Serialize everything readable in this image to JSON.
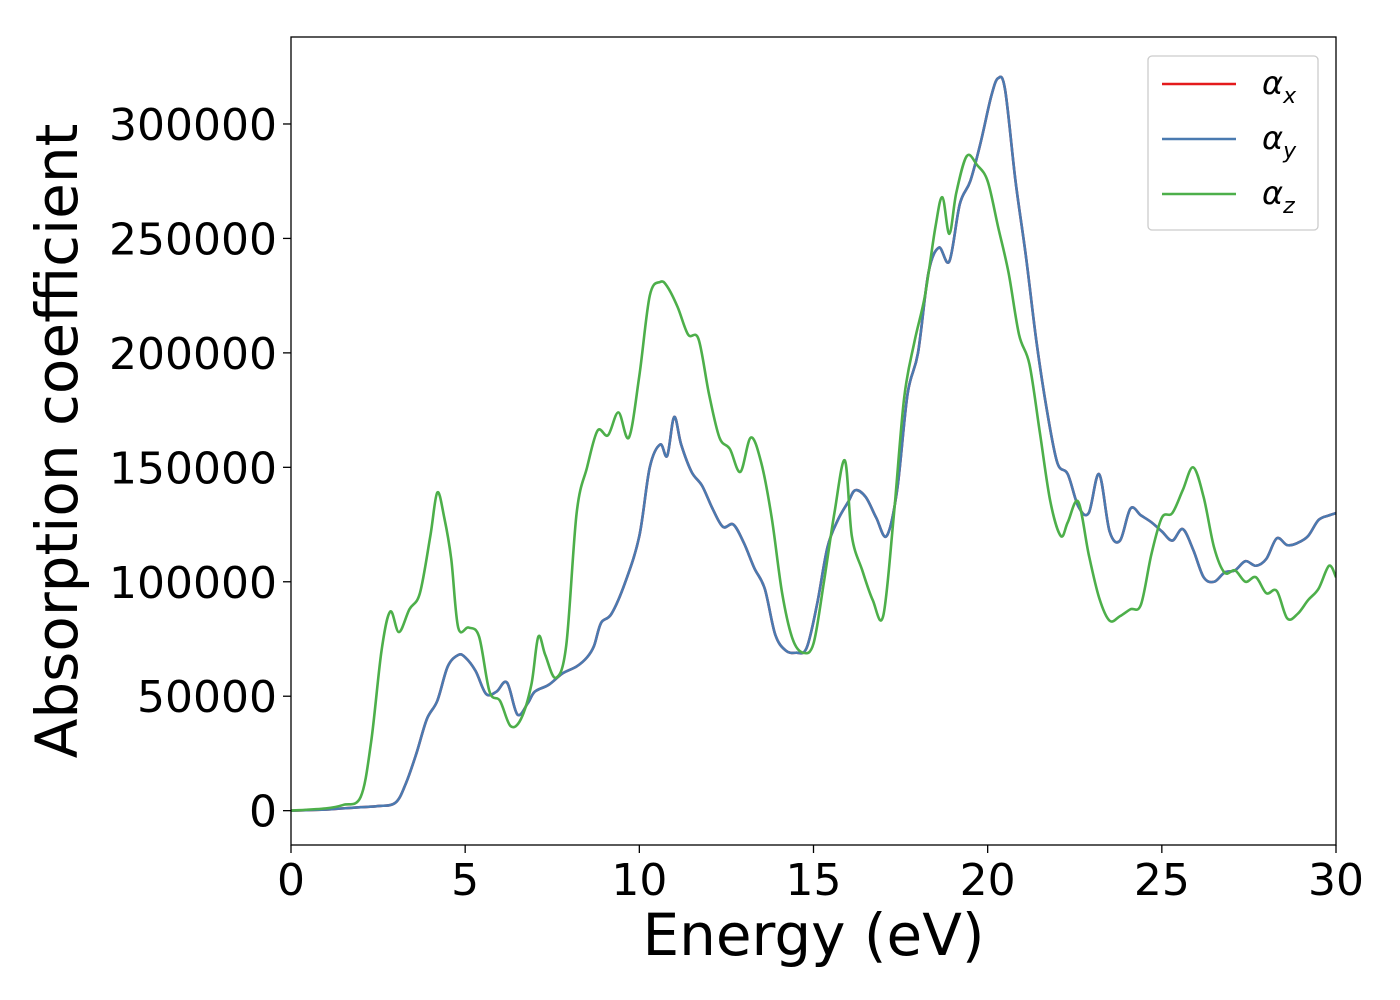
{
  "chart_data": {
    "type": "line",
    "xlabel": "Energy (eV)",
    "ylabel": "Absorption coefficient",
    "xlim": [
      0,
      30
    ],
    "ylim": [
      -15000,
      338000
    ],
    "xticks": [
      0,
      5,
      10,
      15,
      20,
      25,
      30
    ],
    "xtick_labels": [
      "0",
      "5",
      "10",
      "15",
      "20",
      "25",
      "30"
    ],
    "yticks": [
      0,
      50000,
      100000,
      150000,
      200000,
      250000,
      300000
    ],
    "ytick_labels": [
      "0",
      "50000",
      "100000",
      "150000",
      "200000",
      "250000",
      "300000"
    ],
    "grid": false,
    "legend_position": "top-right",
    "series": [
      {
        "name": "α_x",
        "legend_symbol": "α",
        "legend_subscript": "x",
        "color": "#e41a1c",
        "x": [
          0,
          1,
          1.5,
          2,
          2.5,
          3,
          3.3,
          3.6,
          3.9,
          4.2,
          4.5,
          4.8,
          5.0,
          5.3,
          5.6,
          5.9,
          6.2,
          6.5,
          6.8,
          7.0,
          7.4,
          7.8,
          8.2,
          8.5,
          8.7,
          8.9,
          9.2,
          9.6,
          10.0,
          10.3,
          10.6,
          10.8,
          11.0,
          11.2,
          11.5,
          11.8,
          12.1,
          12.4,
          12.7,
          13.0,
          13.3,
          13.6,
          13.9,
          14.2,
          14.5,
          14.8,
          15.1,
          15.4,
          15.7,
          16.0,
          16.2,
          16.5,
          16.8,
          17.1,
          17.4,
          17.7,
          18.0,
          18.3,
          18.6,
          18.9,
          19.2,
          19.5,
          19.8,
          20.1,
          20.3,
          20.5,
          20.8,
          21.1,
          21.4,
          21.7,
          22.0,
          22.3,
          22.6,
          22.9,
          23.2,
          23.5,
          23.8,
          24.1,
          24.4,
          24.7,
          25.0,
          25.3,
          25.6,
          25.9,
          26.2,
          26.5,
          26.8,
          27.1,
          27.4,
          27.7,
          28.0,
          28.3,
          28.6,
          28.9,
          29.2,
          29.5,
          29.8,
          30.0
        ],
        "y": [
          0,
          500,
          1000,
          1500,
          2000,
          3500,
          12000,
          25000,
          40000,
          48000,
          63000,
          68000,
          67000,
          61000,
          51000,
          52000,
          56000,
          42000,
          47000,
          52000,
          55000,
          60000,
          63000,
          67000,
          72000,
          82000,
          86000,
          100000,
          120000,
          150000,
          160000,
          155000,
          172000,
          160000,
          148000,
          142000,
          132000,
          124000,
          125000,
          117000,
          106000,
          97000,
          77000,
          70000,
          69000,
          71000,
          90000,
          115000,
          127000,
          135000,
          140000,
          137000,
          128000,
          120000,
          140000,
          182000,
          200000,
          235000,
          246000,
          240000,
          265000,
          275000,
          292000,
          312000,
          320000,
          315000,
          275000,
          242000,
          205000,
          175000,
          152000,
          147000,
          133000,
          130000,
          147000,
          122000,
          118000,
          132000,
          129000,
          126000,
          122000,
          118000,
          123000,
          114000,
          102000,
          100000,
          104000,
          105000,
          109000,
          107000,
          110000,
          119000,
          116000,
          117000,
          120000,
          127000,
          129000,
          130000
        ]
      },
      {
        "name": "α_y",
        "legend_symbol": "α",
        "legend_subscript": "y",
        "color": "#4a7ab0",
        "x": [
          0,
          1,
          1.5,
          2,
          2.5,
          3,
          3.3,
          3.6,
          3.9,
          4.2,
          4.5,
          4.8,
          5.0,
          5.3,
          5.6,
          5.9,
          6.2,
          6.5,
          6.8,
          7.0,
          7.4,
          7.8,
          8.2,
          8.5,
          8.7,
          8.9,
          9.2,
          9.6,
          10.0,
          10.3,
          10.6,
          10.8,
          11.0,
          11.2,
          11.5,
          11.8,
          12.1,
          12.4,
          12.7,
          13.0,
          13.3,
          13.6,
          13.9,
          14.2,
          14.5,
          14.8,
          15.1,
          15.4,
          15.7,
          16.0,
          16.2,
          16.5,
          16.8,
          17.1,
          17.4,
          17.7,
          18.0,
          18.3,
          18.6,
          18.9,
          19.2,
          19.5,
          19.8,
          20.1,
          20.3,
          20.5,
          20.8,
          21.1,
          21.4,
          21.7,
          22.0,
          22.3,
          22.6,
          22.9,
          23.2,
          23.5,
          23.8,
          24.1,
          24.4,
          24.7,
          25.0,
          25.3,
          25.6,
          25.9,
          26.2,
          26.5,
          26.8,
          27.1,
          27.4,
          27.7,
          28.0,
          28.3,
          28.6,
          28.9,
          29.2,
          29.5,
          29.8,
          30.0
        ],
        "y": [
          0,
          500,
          1000,
          1500,
          2000,
          3500,
          12000,
          25000,
          40000,
          48000,
          63000,
          68000,
          67000,
          61000,
          51000,
          52000,
          56000,
          42000,
          47000,
          52000,
          55000,
          60000,
          63000,
          67000,
          72000,
          82000,
          86000,
          100000,
          120000,
          150000,
          160000,
          155000,
          172000,
          160000,
          148000,
          142000,
          132000,
          124000,
          125000,
          117000,
          106000,
          97000,
          77000,
          70000,
          69000,
          71000,
          90000,
          115000,
          127000,
          135000,
          140000,
          137000,
          128000,
          120000,
          140000,
          182000,
          200000,
          235000,
          246000,
          240000,
          265000,
          275000,
          292000,
          312000,
          320000,
          315000,
          275000,
          242000,
          205000,
          175000,
          152000,
          147000,
          133000,
          130000,
          147000,
          122000,
          118000,
          132000,
          129000,
          126000,
          122000,
          118000,
          123000,
          114000,
          102000,
          100000,
          104000,
          105000,
          109000,
          107000,
          110000,
          119000,
          116000,
          117000,
          120000,
          127000,
          129000,
          130000
        ]
      },
      {
        "name": "α_z",
        "legend_symbol": "α",
        "legend_subscript": "z",
        "color": "#4daf4a",
        "x": [
          0,
          1,
          1.5,
          2,
          2.3,
          2.6,
          2.85,
          3.1,
          3.4,
          3.7,
          4.0,
          4.2,
          4.4,
          4.6,
          4.8,
          5.1,
          5.4,
          5.7,
          6.0,
          6.3,
          6.6,
          6.9,
          7.1,
          7.3,
          7.6,
          7.9,
          8.2,
          8.5,
          8.8,
          9.1,
          9.4,
          9.7,
          10.0,
          10.3,
          10.6,
          10.8,
          11.1,
          11.4,
          11.7,
          12.0,
          12.3,
          12.6,
          12.9,
          13.2,
          13.5,
          13.8,
          14.1,
          14.4,
          14.7,
          15.0,
          15.3,
          15.6,
          15.9,
          16.1,
          16.4,
          16.7,
          17.0,
          17.3,
          17.6,
          17.9,
          18.2,
          18.5,
          18.7,
          18.9,
          19.1,
          19.4,
          19.7,
          20.0,
          20.3,
          20.6,
          20.9,
          21.2,
          21.5,
          21.8,
          22.1,
          22.3,
          22.6,
          22.9,
          23.2,
          23.5,
          23.8,
          24.1,
          24.4,
          24.7,
          25.0,
          25.3,
          25.6,
          25.9,
          26.2,
          26.5,
          26.8,
          27.1,
          27.4,
          27.7,
          28.0,
          28.3,
          28.6,
          28.9,
          29.2,
          29.5,
          29.8,
          30.0
        ],
        "y": [
          0,
          1000,
          2500,
          6000,
          30000,
          70000,
          87000,
          78000,
          88000,
          95000,
          120000,
          139000,
          128000,
          110000,
          80000,
          80000,
          76000,
          52000,
          48000,
          37000,
          40000,
          55000,
          76000,
          68000,
          58000,
          72000,
          130000,
          150000,
          166000,
          164000,
          174000,
          163000,
          190000,
          225000,
          231000,
          229000,
          220000,
          208000,
          206000,
          182000,
          163000,
          158000,
          148000,
          163000,
          152000,
          128000,
          95000,
          75000,
          69000,
          73000,
          100000,
          130000,
          153000,
          120000,
          105000,
          92000,
          85000,
          128000,
          180000,
          205000,
          225000,
          255000,
          268000,
          252000,
          270000,
          286000,
          282000,
          275000,
          255000,
          235000,
          208000,
          195000,
          165000,
          135000,
          120000,
          126000,
          135000,
          112000,
          93000,
          83000,
          85000,
          88000,
          90000,
          112000,
          128000,
          130000,
          140000,
          150000,
          137000,
          115000,
          104000,
          105000,
          100000,
          102000,
          95000,
          96000,
          84000,
          86000,
          92000,
          97000,
          107000,
          102000
        ]
      }
    ]
  }
}
